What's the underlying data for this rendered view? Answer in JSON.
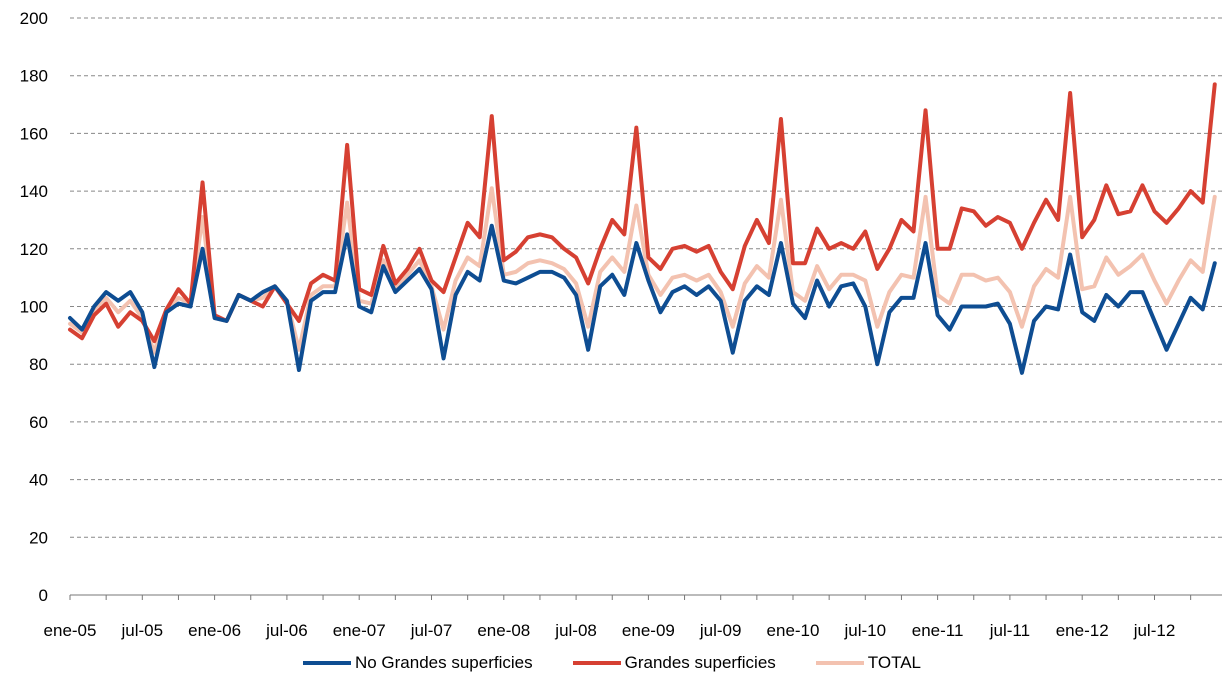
{
  "chart_data": {
    "type": "line",
    "title": "",
    "xlabel": "",
    "ylabel": "",
    "ylim": [
      0,
      200
    ],
    "yticks": [
      0,
      20,
      40,
      60,
      80,
      100,
      120,
      140,
      160,
      180,
      200
    ],
    "xtick_labels": [
      "ene-05",
      "jul-05",
      "ene-06",
      "jul-06",
      "ene-07",
      "jul-07",
      "ene-08",
      "jul-08",
      "ene-09",
      "jul-09",
      "ene-10",
      "jul-10",
      "ene-11",
      "jul-11",
      "ene-12",
      "jul-12"
    ],
    "grid": "horizontal dashed",
    "legend_position": "bottom",
    "x_start": "ene-05",
    "n_points": 96,
    "series": [
      {
        "name": "No Grandes superficies",
        "color": "#0E4D92",
        "values": [
          96,
          92,
          100,
          105,
          102,
          105,
          98,
          79,
          98,
          101,
          100,
          120,
          96,
          95,
          104,
          102,
          105,
          107,
          102,
          78,
          102,
          105,
          105,
          125,
          100,
          98,
          114,
          105,
          109,
          113,
          106,
          82,
          104,
          112,
          109,
          128,
          109,
          108,
          110,
          112,
          112,
          110,
          104,
          85,
          107,
          111,
          104,
          122,
          109,
          98,
          105,
          107,
          104,
          107,
          102,
          84,
          102,
          107,
          104,
          122,
          101,
          96,
          109,
          100,
          107,
          108,
          100,
          80,
          98,
          103,
          103,
          122,
          97,
          92,
          100,
          100,
          100,
          101,
          94,
          77,
          95,
          100,
          99,
          118,
          98,
          95,
          104,
          100,
          105,
          105,
          95,
          85,
          94,
          103,
          99,
          115
        ]
      },
      {
        "name": "Grandes superficies",
        "color": "#D64032",
        "values": [
          92,
          89,
          97,
          101,
          93,
          98,
          95,
          88,
          99,
          106,
          101,
          143,
          97,
          95,
          104,
          102,
          100,
          107,
          101,
          95,
          108,
          111,
          109,
          156,
          106,
          104,
          121,
          108,
          113,
          120,
          109,
          105,
          117,
          129,
          124,
          166,
          116,
          119,
          124,
          125,
          124,
          120,
          117,
          108,
          120,
          130,
          125,
          162,
          117,
          113,
          120,
          121,
          119,
          121,
          112,
          106,
          121,
          130,
          122,
          165,
          115,
          115,
          127,
          120,
          122,
          120,
          126,
          113,
          120,
          130,
          126,
          168,
          120,
          120,
          134,
          133,
          128,
          131,
          129,
          120,
          129,
          137,
          130,
          174,
          124,
          130,
          142,
          132,
          133,
          142,
          133,
          129,
          134,
          140,
          136,
          177
        ]
      },
      {
        "name": "TOTAL",
        "color": "#F3C2B0",
        "values": [
          94,
          91,
          99,
          103,
          98,
          102,
          96,
          84,
          99,
          103,
          101,
          131,
          96,
          95,
          104,
          102,
          103,
          107,
          102,
          85,
          104,
          107,
          107,
          136,
          102,
          101,
          116,
          106,
          111,
          116,
          107,
          92,
          109,
          117,
          114,
          141,
          111,
          112,
          115,
          116,
          115,
          113,
          108,
          93,
          112,
          117,
          112,
          135,
          111,
          104,
          110,
          111,
          109,
          111,
          105,
          93,
          108,
          114,
          110,
          137,
          105,
          102,
          114,
          106,
          111,
          111,
          109,
          93,
          105,
          111,
          110,
          138,
          104,
          101,
          111,
          111,
          109,
          110,
          105,
          93,
          107,
          113,
          110,
          138,
          106,
          107,
          117,
          111,
          114,
          118,
          109,
          101,
          109,
          116,
          112,
          138
        ]
      }
    ]
  }
}
